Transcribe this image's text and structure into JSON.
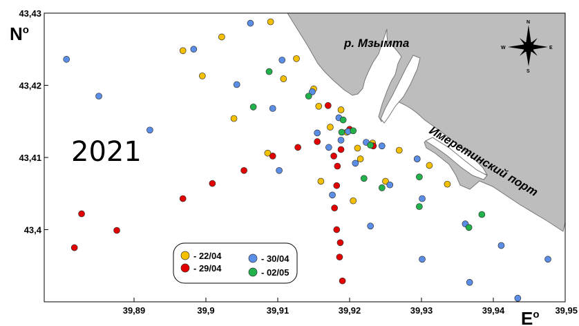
{
  "title": "2021",
  "axes": {
    "y_label": "N",
    "y_label_sup": "o",
    "x_label": "E",
    "x_label_sup": "o",
    "x_ticks": [
      "39,89",
      "39,9",
      "39,91",
      "39,92",
      "39,93",
      "39,94",
      "39,95"
    ],
    "y_ticks": [
      "43,43",
      "43,42",
      "43,41",
      "43,4"
    ],
    "x_range": [
      39.8775,
      39.95
    ],
    "y_range": [
      43.39,
      43.43
    ]
  },
  "labels": {
    "river": "р. Мзымта",
    "port": "Имеретинский порт"
  },
  "compass": {
    "n": "N",
    "s": "S",
    "e": "E",
    "w": "W"
  },
  "colors": {
    "land": "#bdbdbd",
    "2204": "#f5c000",
    "2904": "#e30000",
    "3004": "#5b8ee6",
    "0205": "#22b24c"
  },
  "legend": [
    {
      "key": "2204",
      "label": "- 22/04"
    },
    {
      "key": "3004",
      "label": "- 30/04"
    },
    {
      "key": "2904",
      "label": "- 29/04"
    },
    {
      "key": "0205",
      "label": "- 02/05"
    }
  ],
  "chart_data": {
    "type": "scatter",
    "series": [
      {
        "name": "22/04",
        "color_key": "2204",
        "points": [
          [
            39.909,
            43.4288
          ],
          [
            39.9022,
            43.4267
          ],
          [
            39.8968,
            43.4248
          ],
          [
            39.9126,
            43.4237
          ],
          [
            39.8995,
            43.4213
          ],
          [
            39.9108,
            43.4209
          ],
          [
            39.915,
            43.4195
          ],
          [
            39.9157,
            43.4171
          ],
          [
            39.9188,
            43.4166
          ],
          [
            39.9039,
            43.4154
          ],
          [
            39.9173,
            43.4142
          ],
          [
            39.9196,
            43.4135
          ],
          [
            39.9086,
            43.4106
          ],
          [
            39.9211,
            43.4113
          ],
          [
            39.9232,
            43.412
          ],
          [
            39.9269,
            43.411
          ],
          [
            39.9215,
            43.4098
          ],
          [
            39.9311,
            43.4089
          ],
          [
            39.916,
            43.4067
          ],
          [
            39.925,
            43.4067
          ],
          [
            39.9336,
            43.4063
          ],
          [
            39.9205,
            43.404
          ]
        ]
      },
      {
        "name": "29/04",
        "color_key": "2904",
        "points": [
          [
            39.917,
            43.4172
          ],
          [
            39.92,
            43.4139
          ],
          [
            39.9155,
            43.4122
          ],
          [
            39.9128,
            43.4114
          ],
          [
            39.9188,
            43.4111
          ],
          [
            39.9233,
            43.4116
          ],
          [
            39.9178,
            43.4102
          ],
          [
            39.9093,
            43.4102
          ],
          [
            39.9294,
            43.4098
          ],
          [
            39.9183,
            43.4088
          ],
          [
            39.9053,
            43.4082
          ],
          [
            39.9182,
            43.4061
          ],
          [
            39.9009,
            43.4064
          ],
          [
            39.8968,
            43.4043
          ],
          [
            39.9179,
            43.403
          ],
          [
            39.8827,
            43.4022
          ],
          [
            39.9182,
            43.4
          ],
          [
            39.8876,
            43.3999
          ],
          [
            39.9187,
            43.3982
          ],
          [
            39.8817,
            43.3975
          ],
          [
            39.9186,
            43.3962
          ],
          [
            39.919,
            43.3929
          ]
        ]
      },
      {
        "name": "30/04",
        "color_key": "3004",
        "points": [
          [
            39.9062,
            43.4286
          ],
          [
            39.8983,
            43.425
          ],
          [
            39.8806,
            43.4236
          ],
          [
            39.9106,
            43.4235
          ],
          [
            39.9043,
            43.4201
          ],
          [
            39.9148,
            43.4191
          ],
          [
            39.8851,
            43.4185
          ],
          [
            39.9093,
            43.4168
          ],
          [
            39.9185,
            43.4155
          ],
          [
            39.8922,
            43.4138
          ],
          [
            39.9155,
            43.4134
          ],
          [
            39.9188,
            43.4124
          ],
          [
            39.9223,
            43.4121
          ],
          [
            39.9245,
            43.4116
          ],
          [
            39.9171,
            43.4114
          ],
          [
            39.9198,
            43.4136
          ],
          [
            39.9208,
            43.4092
          ],
          [
            39.9294,
            43.4098
          ],
          [
            39.9102,
            43.4082
          ],
          [
            39.9256,
            43.4062
          ],
          [
            39.9176,
            43.4048
          ],
          [
            39.9301,
            43.4043
          ],
          [
            39.9229,
            43.4005
          ],
          [
            39.9361,
            43.4008
          ],
          [
            39.9411,
            43.3978
          ],
          [
            39.9301,
            43.3959
          ],
          [
            39.9476,
            43.3959
          ],
          [
            39.9367,
            43.3927
          ],
          [
            39.9434,
            43.3905
          ]
        ]
      },
      {
        "name": "02/05",
        "color_key": "0205",
        "points": [
          [
            39.9088,
            43.4219
          ],
          [
            39.9066,
            43.417
          ],
          [
            39.9143,
            43.4185
          ],
          [
            39.9191,
            43.4152
          ],
          [
            39.9189,
            43.4135
          ],
          [
            39.9205,
            43.4137
          ],
          [
            39.9229,
            43.4117
          ],
          [
            39.922,
            43.4071
          ],
          [
            39.9245,
            43.4058
          ],
          [
            39.9297,
            43.4073
          ],
          [
            39.9297,
            43.4032
          ],
          [
            39.9384,
            43.4021
          ],
          [
            39.9366,
            43.4003
          ]
        ]
      }
    ]
  }
}
